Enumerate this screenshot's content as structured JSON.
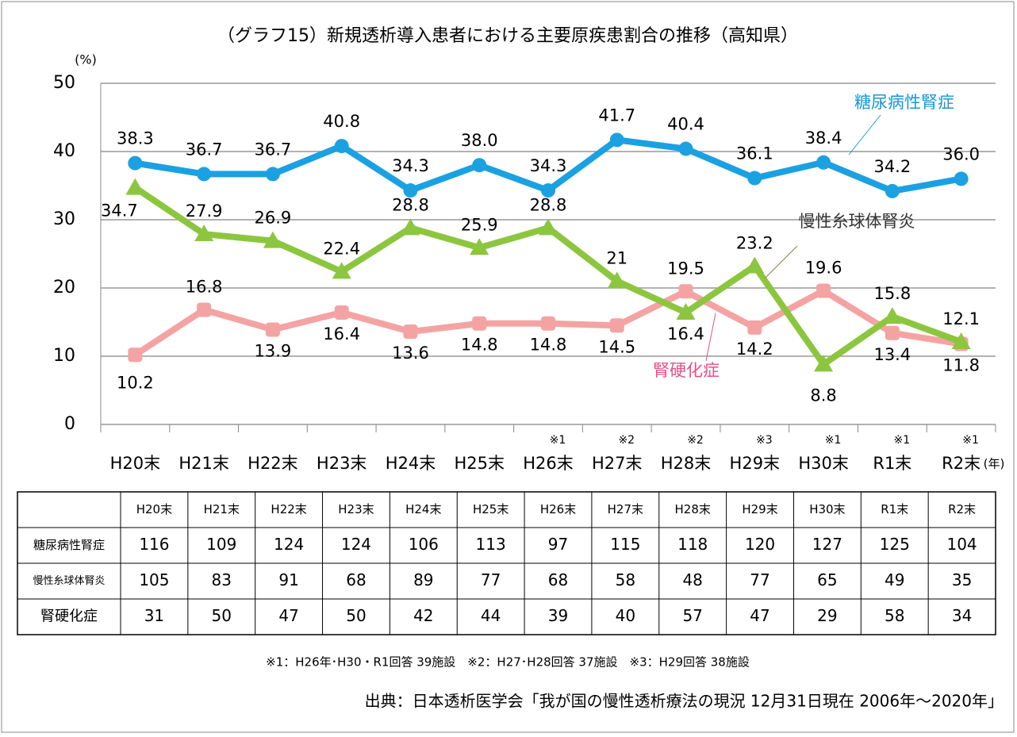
{
  "chart_data": {
    "type": "line",
    "title": "（グラフ15）新規透析導入患者における主要原疾患割合の推移（高知県）",
    "y_unit": "(%)",
    "x_unit": "(年)",
    "categories": [
      "H20末",
      "H21末",
      "H22末",
      "H23末",
      "H24末",
      "H25末",
      "H26末",
      "H27末",
      "H28末",
      "H29末",
      "H30末",
      "R1末",
      "R2末"
    ],
    "category_notes": [
      null,
      null,
      null,
      null,
      null,
      null,
      "※1",
      "※2",
      "※2",
      "※3",
      "※1",
      "※1",
      "※1"
    ],
    "ylim": [
      0,
      50
    ],
    "yticks": [
      0,
      10,
      20,
      30,
      40,
      50
    ],
    "grid": true,
    "series": [
      {
        "name": "糖尿病性腎症",
        "color": "#1ba1e2",
        "values": [
          38.3,
          36.7,
          36.7,
          40.8,
          34.3,
          38.0,
          34.3,
          41.7,
          40.4,
          36.1,
          38.4,
          34.2,
          36.0
        ],
        "value_labels": [
          "38.3",
          "36.7",
          "36.7",
          "40.8",
          "34.3",
          "38.0",
          "34.3",
          "41.7",
          "40.4",
          "36.1",
          "38.4",
          "34.2",
          "36.0"
        ]
      },
      {
        "name": "慢性糸球体腎炎",
        "color": "#8cc63f",
        "values": [
          34.7,
          27.9,
          26.9,
          22.4,
          28.8,
          25.9,
          28.8,
          21.0,
          16.4,
          23.2,
          8.8,
          15.8,
          12.1
        ]
      },
      {
        "name": "腎硬化症",
        "color": "#f4a3a3",
        "values": [
          10.2,
          16.8,
          13.9,
          16.4,
          13.6,
          14.8,
          14.8,
          14.5,
          19.5,
          14.2,
          19.6,
          13.4,
          11.8
        ]
      }
    ]
  },
  "table": {
    "columns": [
      "H20末",
      "H21末",
      "H22末",
      "H23末",
      "H24末",
      "H25末",
      "H26末",
      "H27末",
      "H28末",
      "H29末",
      "H30末",
      "R1末",
      "R2末"
    ],
    "rows": [
      [
        "糖尿病性腎症",
        116,
        109,
        124,
        124,
        106,
        113,
        97,
        115,
        118,
        120,
        127,
        125,
        104
      ],
      [
        "慢性糸球体腎炎",
        105,
        83,
        91,
        68,
        89,
        77,
        68,
        58,
        48,
        77,
        65,
        49,
        35
      ],
      [
        "腎硬化症",
        31,
        50,
        47,
        50,
        42,
        44,
        39,
        40,
        57,
        47,
        29,
        58,
        34
      ]
    ]
  },
  "footnote": "※1：H26年･H30・R1回答 39施設　※2：H27･H28回答 37施設　※3：H29回答 38施設",
  "source": "出典：日本透析医学会「我が国の慢性透析療法の現況 12月31日現在 2006年～2020年」"
}
